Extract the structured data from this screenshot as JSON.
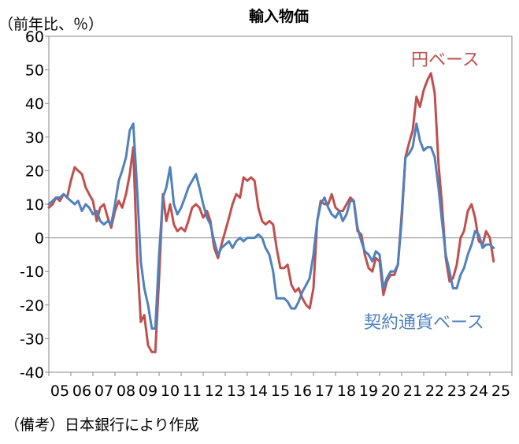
{
  "chart_data": {
    "type": "line",
    "title": "輸入物価",
    "unit_label": "（前年比、％）",
    "ylim": [
      -40,
      60
    ],
    "yticks": [
      60,
      50,
      40,
      30,
      20,
      10,
      0,
      -10,
      -20,
      -30,
      -40
    ],
    "xlim": [
      2005,
      2026
    ],
    "xtick_labels": [
      "05",
      "06",
      "07",
      "08",
      "09",
      "10",
      "11",
      "12",
      "13",
      "14",
      "15",
      "16",
      "17",
      "18",
      "19",
      "20",
      "21",
      "22",
      "23",
      "24",
      "25"
    ],
    "grid": false,
    "series": [
      {
        "name": "円ベース",
        "color": "#c0504d",
        "points": [
          [
            2005.0,
            9
          ],
          [
            2005.17,
            10
          ],
          [
            2005.33,
            12
          ],
          [
            2005.5,
            11
          ],
          [
            2005.67,
            13
          ],
          [
            2005.83,
            12
          ],
          [
            2006.0,
            17
          ],
          [
            2006.17,
            21
          ],
          [
            2006.33,
            20
          ],
          [
            2006.5,
            19
          ],
          [
            2006.67,
            15
          ],
          [
            2006.83,
            13
          ],
          [
            2007.0,
            11
          ],
          [
            2007.17,
            5
          ],
          [
            2007.33,
            9
          ],
          [
            2007.5,
            10
          ],
          [
            2007.67,
            6
          ],
          [
            2007.83,
            3
          ],
          [
            2008.0,
            8
          ],
          [
            2008.17,
            11
          ],
          [
            2008.33,
            9
          ],
          [
            2008.5,
            13
          ],
          [
            2008.67,
            19
          ],
          [
            2008.83,
            27
          ],
          [
            2009.0,
            -5
          ],
          [
            2009.17,
            -25
          ],
          [
            2009.33,
            -23
          ],
          [
            2009.5,
            -32
          ],
          [
            2009.67,
            -34
          ],
          [
            2009.83,
            -34
          ],
          [
            2010.0,
            -12
          ],
          [
            2010.17,
            13
          ],
          [
            2010.33,
            5
          ],
          [
            2010.5,
            10
          ],
          [
            2010.67,
            4
          ],
          [
            2010.83,
            2
          ],
          [
            2011.0,
            3
          ],
          [
            2011.17,
            2
          ],
          [
            2011.33,
            5
          ],
          [
            2011.5,
            9
          ],
          [
            2011.67,
            10
          ],
          [
            2011.83,
            9
          ],
          [
            2012.0,
            6
          ],
          [
            2012.17,
            8
          ],
          [
            2012.33,
            5
          ],
          [
            2012.5,
            -3
          ],
          [
            2012.67,
            -6
          ],
          [
            2012.83,
            -2
          ],
          [
            2013.0,
            2
          ],
          [
            2013.17,
            6
          ],
          [
            2013.33,
            10
          ],
          [
            2013.5,
            13
          ],
          [
            2013.67,
            12
          ],
          [
            2013.83,
            18
          ],
          [
            2014.0,
            17
          ],
          [
            2014.17,
            18
          ],
          [
            2014.33,
            17
          ],
          [
            2014.5,
            9
          ],
          [
            2014.67,
            5
          ],
          [
            2014.83,
            4
          ],
          [
            2015.0,
            5
          ],
          [
            2015.17,
            4
          ],
          [
            2015.33,
            -3
          ],
          [
            2015.5,
            -9
          ],
          [
            2015.67,
            -9
          ],
          [
            2015.83,
            -8
          ],
          [
            2016.0,
            -14
          ],
          [
            2016.17,
            -16
          ],
          [
            2016.33,
            -15
          ],
          [
            2016.5,
            -18
          ],
          [
            2016.67,
            -20
          ],
          [
            2016.83,
            -21
          ],
          [
            2017.0,
            -15
          ],
          [
            2017.17,
            5
          ],
          [
            2017.33,
            11
          ],
          [
            2017.5,
            10
          ],
          [
            2017.67,
            10
          ],
          [
            2017.83,
            13
          ],
          [
            2018.0,
            9
          ],
          [
            2018.17,
            8
          ],
          [
            2018.33,
            8
          ],
          [
            2018.5,
            10
          ],
          [
            2018.67,
            12
          ],
          [
            2018.83,
            11
          ],
          [
            2019.0,
            2
          ],
          [
            2019.17,
            1
          ],
          [
            2019.33,
            -5
          ],
          [
            2019.5,
            -9
          ],
          [
            2019.67,
            -10
          ],
          [
            2019.83,
            -6
          ],
          [
            2020.0,
            -7
          ],
          [
            2020.17,
            -17
          ],
          [
            2020.33,
            -13
          ],
          [
            2020.5,
            -11
          ],
          [
            2020.67,
            -11
          ],
          [
            2020.83,
            -8
          ],
          [
            2021.0,
            7
          ],
          [
            2021.17,
            24
          ],
          [
            2021.33,
            28
          ],
          [
            2021.5,
            32
          ],
          [
            2021.67,
            42
          ],
          [
            2021.83,
            39
          ],
          [
            2022.0,
            44
          ],
          [
            2022.17,
            47
          ],
          [
            2022.33,
            49
          ],
          [
            2022.5,
            43
          ],
          [
            2022.67,
            22
          ],
          [
            2022.83,
            10
          ],
          [
            2023.0,
            -6
          ],
          [
            2023.17,
            -13
          ],
          [
            2023.33,
            -12
          ],
          [
            2023.5,
            -8
          ],
          [
            2023.67,
            0
          ],
          [
            2023.83,
            2
          ],
          [
            2024.0,
            8
          ],
          [
            2024.17,
            10
          ],
          [
            2024.33,
            6
          ],
          [
            2024.5,
            -1
          ],
          [
            2024.67,
            -2
          ],
          [
            2024.83,
            2
          ],
          [
            2025.0,
            0
          ],
          [
            2025.17,
            -7
          ]
        ]
      },
      {
        "name": "契約通貨ベース",
        "color": "#4f81bd",
        "points": [
          [
            2005.0,
            10
          ],
          [
            2005.17,
            11
          ],
          [
            2005.33,
            12
          ],
          [
            2005.5,
            12
          ],
          [
            2005.67,
            13
          ],
          [
            2005.83,
            12
          ],
          [
            2006.0,
            11
          ],
          [
            2006.17,
            10
          ],
          [
            2006.33,
            11
          ],
          [
            2006.5,
            8
          ],
          [
            2006.67,
            10
          ],
          [
            2006.83,
            9
          ],
          [
            2007.0,
            7
          ],
          [
            2007.17,
            8
          ],
          [
            2007.33,
            5
          ],
          [
            2007.5,
            4
          ],
          [
            2007.67,
            5
          ],
          [
            2007.83,
            4
          ],
          [
            2008.0,
            10
          ],
          [
            2008.17,
            17
          ],
          [
            2008.33,
            20
          ],
          [
            2008.5,
            24
          ],
          [
            2008.67,
            32
          ],
          [
            2008.83,
            34
          ],
          [
            2009.0,
            15
          ],
          [
            2009.17,
            -7
          ],
          [
            2009.33,
            -15
          ],
          [
            2009.5,
            -20
          ],
          [
            2009.67,
            -27
          ],
          [
            2009.83,
            -27
          ],
          [
            2010.0,
            -5
          ],
          [
            2010.17,
            12
          ],
          [
            2010.33,
            15
          ],
          [
            2010.5,
            21
          ],
          [
            2010.67,
            10
          ],
          [
            2010.83,
            7
          ],
          [
            2011.0,
            9
          ],
          [
            2011.17,
            12
          ],
          [
            2011.33,
            15
          ],
          [
            2011.5,
            17
          ],
          [
            2011.67,
            19
          ],
          [
            2011.83,
            15
          ],
          [
            2012.0,
            10
          ],
          [
            2012.17,
            6
          ],
          [
            2012.33,
            4
          ],
          [
            2012.5,
            -1
          ],
          [
            2012.67,
            -5
          ],
          [
            2012.83,
            -3
          ],
          [
            2013.0,
            -2
          ],
          [
            2013.17,
            -1
          ],
          [
            2013.33,
            -3
          ],
          [
            2013.5,
            -1
          ],
          [
            2013.67,
            0
          ],
          [
            2013.83,
            -1
          ],
          [
            2014.0,
            0
          ],
          [
            2014.17,
            0
          ],
          [
            2014.33,
            0
          ],
          [
            2014.5,
            1
          ],
          [
            2014.67,
            0
          ],
          [
            2014.83,
            -3
          ],
          [
            2015.0,
            -5
          ],
          [
            2015.17,
            -10
          ],
          [
            2015.33,
            -18
          ],
          [
            2015.5,
            -18
          ],
          [
            2015.67,
            -18
          ],
          [
            2015.83,
            -19
          ],
          [
            2016.0,
            -21
          ],
          [
            2016.17,
            -21
          ],
          [
            2016.33,
            -19
          ],
          [
            2016.5,
            -16
          ],
          [
            2016.67,
            -14
          ],
          [
            2016.83,
            -12
          ],
          [
            2017.0,
            -5
          ],
          [
            2017.17,
            5
          ],
          [
            2017.33,
            10
          ],
          [
            2017.5,
            12
          ],
          [
            2017.67,
            9
          ],
          [
            2017.83,
            7
          ],
          [
            2018.0,
            6
          ],
          [
            2018.17,
            8
          ],
          [
            2018.33,
            5
          ],
          [
            2018.5,
            7
          ],
          [
            2018.67,
            11
          ],
          [
            2018.83,
            11
          ],
          [
            2019.0,
            3
          ],
          [
            2019.17,
            -1
          ],
          [
            2019.33,
            -4
          ],
          [
            2019.5,
            -5
          ],
          [
            2019.67,
            -7
          ],
          [
            2019.83,
            -4
          ],
          [
            2020.0,
            -5
          ],
          [
            2020.17,
            -15
          ],
          [
            2020.33,
            -12
          ],
          [
            2020.5,
            -10
          ],
          [
            2020.67,
            -10
          ],
          [
            2020.83,
            -8
          ],
          [
            2021.0,
            5
          ],
          [
            2021.17,
            24
          ],
          [
            2021.33,
            25
          ],
          [
            2021.5,
            27
          ],
          [
            2021.67,
            34
          ],
          [
            2021.83,
            29
          ],
          [
            2022.0,
            26
          ],
          [
            2022.17,
            27
          ],
          [
            2022.33,
            27
          ],
          [
            2022.5,
            24
          ],
          [
            2022.67,
            15
          ],
          [
            2022.83,
            5
          ],
          [
            2023.0,
            -5
          ],
          [
            2023.17,
            -10
          ],
          [
            2023.33,
            -15
          ],
          [
            2023.5,
            -15
          ],
          [
            2023.67,
            -11
          ],
          [
            2023.83,
            -9
          ],
          [
            2024.0,
            -5
          ],
          [
            2024.17,
            -2
          ],
          [
            2024.33,
            2
          ],
          [
            2024.5,
            1
          ],
          [
            2024.67,
            -3
          ],
          [
            2024.83,
            -2
          ],
          [
            2025.0,
            -2
          ],
          [
            2025.17,
            -3
          ]
        ]
      }
    ],
    "series_labels": [
      {
        "series": "円ベース",
        "text": "円ベース",
        "color": "#c0504d"
      },
      {
        "series": "契約通貨ベース",
        "text": "契約通貨ベース",
        "color": "#4f81bd"
      }
    ]
  },
  "footnote": "（備考）日本銀行により作成"
}
